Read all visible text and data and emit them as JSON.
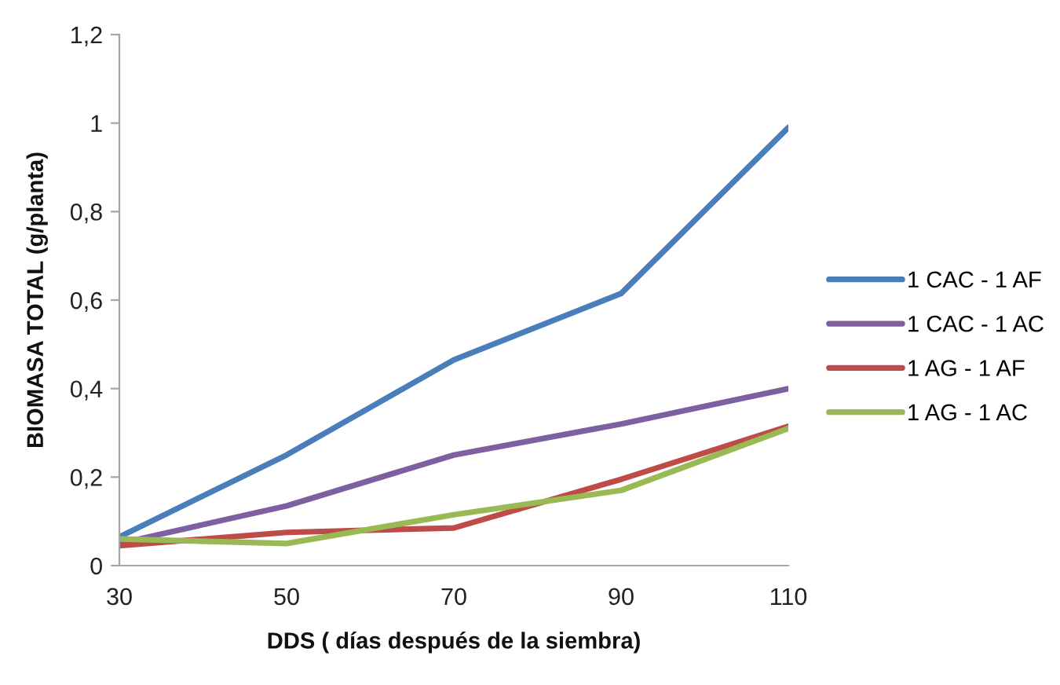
{
  "chart_data": {
    "type": "line",
    "xlabel": "DDS ( días después de la siembra)",
    "ylabel": "BIOMASA TOTAL (g/planta)",
    "categories": [
      "30",
      "50",
      "70",
      "90",
      "110"
    ],
    "series": [
      {
        "name": "1 CAC - 1 AF",
        "color": "#4a7ebb",
        "values": [
          0.065,
          0.25,
          0.465,
          0.615,
          0.99
        ]
      },
      {
        "name": "1 CAC - 1 AC",
        "color": "#7e60a0",
        "values": [
          0.05,
          0.135,
          0.25,
          0.32,
          0.4
        ]
      },
      {
        "name": "1 AG - 1 AF",
        "color": "#be4b48",
        "values": [
          0.045,
          0.075,
          0.085,
          0.195,
          0.315
        ]
      },
      {
        "name": "1 AG - 1 AC",
        "color": "#98b954",
        "values": [
          0.06,
          0.05,
          0.115,
          0.17,
          0.31
        ]
      }
    ],
    "ylim": [
      0,
      1.2
    ],
    "yticks": [
      0,
      {
        "value": 0.2,
        "label": "0,2"
      },
      {
        "value": 0.4,
        "label": "0,4"
      },
      {
        "value": 0.6,
        "label": "0,6"
      },
      {
        "value": 0.8,
        "label": "0,8"
      },
      1,
      {
        "value": 1.2,
        "label": "1,2"
      }
    ],
    "grid": false,
    "legend": "right",
    "marker": "none",
    "line_style": "solid"
  }
}
